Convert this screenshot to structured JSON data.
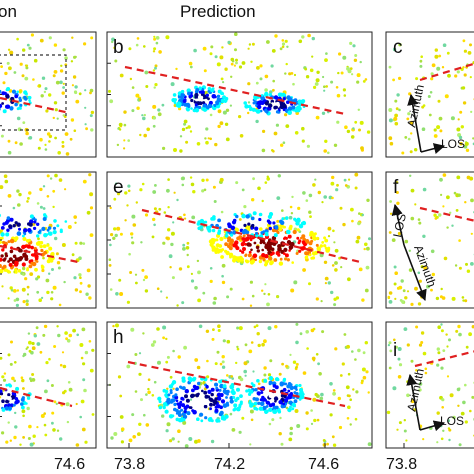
{
  "figure": {
    "column_titles": [
      "on",
      "Prediction"
    ],
    "panel_letters": [
      "b",
      "c",
      "e",
      "f",
      "h",
      "i"
    ],
    "x_ticks": {
      "left": [
        "74.6"
      ],
      "middle": [
        "73.8",
        "74.2",
        "74.6"
      ],
      "right": [
        "73.8"
      ]
    },
    "arrow_labels": {
      "c": {
        "azimuth": "Azimuth",
        "los": "LOS"
      },
      "f": {
        "azimuth": "Azimuth",
        "los": "LOS"
      },
      "i": {
        "azimuth": "Azimuth",
        "los": "LOS"
      }
    }
  },
  "colors": {
    "fault_trace": "#e02020",
    "subset_box": "#333333",
    "colormap": [
      "#00007f",
      "#0000ff",
      "#007fff",
      "#00ffff",
      "#7fff7f",
      "#ffff00",
      "#ff7f00",
      "#ff0000",
      "#7f0000"
    ]
  },
  "chart_data": {
    "type": "scatter",
    "layout": "3x3 panel grid (left column cropped)",
    "x_ticks_shown": [
      73.8,
      74.2,
      74.6
    ],
    "panels": [
      {
        "row": 1,
        "col": "left",
        "letter": "",
        "fault_trace": true,
        "subset_box": true,
        "signal": "negative"
      },
      {
        "row": 1,
        "col": "middle",
        "letter": "b",
        "fault_trace": true,
        "signal": "negative"
      },
      {
        "row": 1,
        "col": "right",
        "letter": "c",
        "fault_trace": true,
        "look_arrows": true
      },
      {
        "row": 2,
        "col": "left",
        "letter": "",
        "fault_trace": true,
        "signal": "positive"
      },
      {
        "row": 2,
        "col": "middle",
        "letter": "e",
        "fault_trace": true,
        "signal": "positive"
      },
      {
        "row": 2,
        "col": "right",
        "letter": "f",
        "fault_trace": true,
        "look_arrows": true
      },
      {
        "row": 3,
        "col": "left",
        "letter": "",
        "fault_trace": true,
        "signal": "negative"
      },
      {
        "row": 3,
        "col": "middle",
        "letter": "h",
        "fault_trace": true,
        "signal": "negative"
      },
      {
        "row": 3,
        "col": "right",
        "letter": "i",
        "fault_trace": true,
        "look_arrows": true
      }
    ]
  }
}
